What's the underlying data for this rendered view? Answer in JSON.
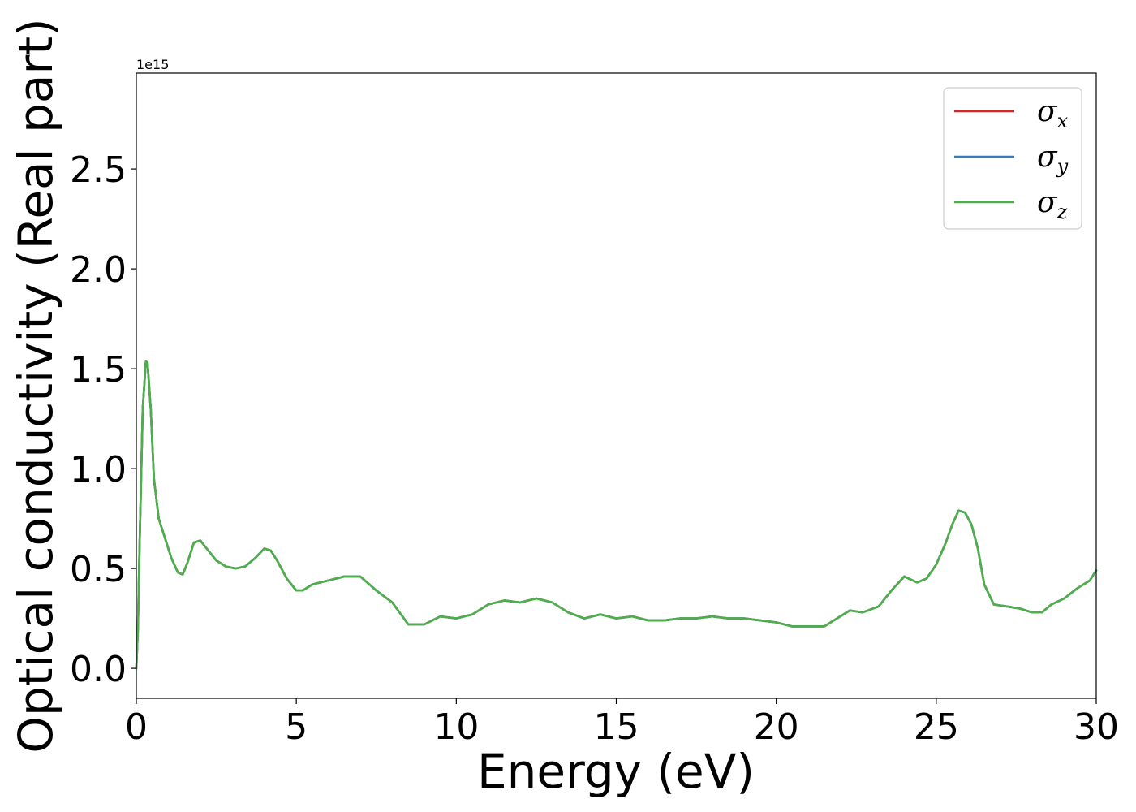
{
  "chart_data": {
    "type": "line",
    "title": "",
    "xlabel": "Energy (eV)",
    "ylabel": "Optical conductivity (Real part)",
    "y_offset_label": "1e15",
    "xlim": [
      0,
      30
    ],
    "ylim": [
      -0.15,
      2.98
    ],
    "x_ticks": [
      0,
      5,
      10,
      15,
      20,
      25,
      30
    ],
    "x_tick_labels": [
      "0",
      "5",
      "10",
      "15",
      "20",
      "25",
      "30"
    ],
    "y_ticks": [
      0.0,
      0.5,
      1.0,
      1.5,
      2.0,
      2.5
    ],
    "y_tick_labels": [
      "0.0",
      "0.5",
      "1.0",
      "1.5",
      "2.0",
      "2.5"
    ],
    "grid": false,
    "legend_position": "top-right",
    "x": [
      0,
      0.05,
      0.1,
      0.2,
      0.3,
      0.35,
      0.45,
      0.55,
      0.7,
      0.9,
      1.1,
      1.3,
      1.45,
      1.6,
      1.8,
      2.0,
      2.2,
      2.5,
      2.8,
      3.1,
      3.4,
      3.7,
      4.0,
      4.2,
      4.4,
      4.7,
      5.0,
      5.2,
      5.5,
      6.0,
      6.5,
      7.0,
      7.5,
      8.0,
      8.5,
      9.0,
      9.5,
      10.0,
      10.5,
      11.0,
      11.5,
      12.0,
      12.5,
      13.0,
      13.5,
      14.0,
      14.5,
      15.0,
      15.5,
      16.0,
      16.5,
      17.0,
      17.5,
      18.0,
      18.5,
      19.0,
      19.5,
      20.0,
      20.5,
      21.0,
      21.5,
      22.0,
      22.3,
      22.7,
      23.2,
      23.6,
      24.0,
      24.4,
      24.7,
      25.0,
      25.3,
      25.5,
      25.7,
      25.9,
      26.1,
      26.3,
      26.5,
      26.8,
      27.2,
      27.6,
      28.0,
      28.3,
      28.6,
      29.0,
      29.4,
      29.8,
      30.0
    ],
    "series": [
      {
        "name": "σx",
        "color": "#d62728",
        "values": [
          0.0,
          0.2,
          0.6,
          1.3,
          1.54,
          1.53,
          1.3,
          0.95,
          0.75,
          0.65,
          0.55,
          0.48,
          0.47,
          0.53,
          0.63,
          0.64,
          0.6,
          0.54,
          0.51,
          0.5,
          0.51,
          0.55,
          0.6,
          0.59,
          0.54,
          0.45,
          0.39,
          0.39,
          0.42,
          0.44,
          0.46,
          0.46,
          0.39,
          0.33,
          0.22,
          0.22,
          0.26,
          0.25,
          0.27,
          0.32,
          0.34,
          0.33,
          0.35,
          0.33,
          0.28,
          0.25,
          0.27,
          0.25,
          0.26,
          0.24,
          0.24,
          0.25,
          0.25,
          0.26,
          0.25,
          0.25,
          0.24,
          0.23,
          0.21,
          0.21,
          0.21,
          0.26,
          0.29,
          0.28,
          0.31,
          0.39,
          0.46,
          0.43,
          0.45,
          0.52,
          0.63,
          0.72,
          0.79,
          0.78,
          0.72,
          0.6,
          0.42,
          0.32,
          0.31,
          0.3,
          0.28,
          0.28,
          0.32,
          0.35,
          0.4,
          0.44,
          0.49
        ]
      },
      {
        "name": "σy",
        "color": "#377eb8",
        "values": [
          0.0,
          0.2,
          0.6,
          1.3,
          1.54,
          1.53,
          1.3,
          0.95,
          0.75,
          0.65,
          0.55,
          0.48,
          0.47,
          0.53,
          0.63,
          0.64,
          0.6,
          0.54,
          0.51,
          0.5,
          0.51,
          0.55,
          0.6,
          0.59,
          0.54,
          0.45,
          0.39,
          0.39,
          0.42,
          0.44,
          0.46,
          0.46,
          0.39,
          0.33,
          0.22,
          0.22,
          0.26,
          0.25,
          0.27,
          0.32,
          0.34,
          0.33,
          0.35,
          0.33,
          0.28,
          0.25,
          0.27,
          0.25,
          0.26,
          0.24,
          0.24,
          0.25,
          0.25,
          0.26,
          0.25,
          0.25,
          0.24,
          0.23,
          0.21,
          0.21,
          0.21,
          0.26,
          0.29,
          0.28,
          0.31,
          0.39,
          0.46,
          0.43,
          0.45,
          0.52,
          0.63,
          0.72,
          0.79,
          0.78,
          0.72,
          0.6,
          0.42,
          0.32,
          0.31,
          0.3,
          0.28,
          0.28,
          0.32,
          0.35,
          0.4,
          0.44,
          0.49
        ]
      },
      {
        "name": "σz",
        "color": "#4daf4a",
        "values": [
          0.0,
          0.2,
          0.6,
          1.3,
          1.54,
          1.53,
          1.3,
          0.95,
          0.75,
          0.65,
          0.55,
          0.48,
          0.47,
          0.53,
          0.63,
          0.64,
          0.6,
          0.54,
          0.51,
          0.5,
          0.51,
          0.55,
          0.6,
          0.59,
          0.54,
          0.45,
          0.39,
          0.39,
          0.42,
          0.44,
          0.46,
          0.46,
          0.39,
          0.33,
          0.22,
          0.22,
          0.26,
          0.25,
          0.27,
          0.32,
          0.34,
          0.33,
          0.35,
          0.33,
          0.28,
          0.25,
          0.27,
          0.25,
          0.26,
          0.24,
          0.24,
          0.25,
          0.25,
          0.26,
          0.25,
          0.25,
          0.24,
          0.23,
          0.21,
          0.21,
          0.21,
          0.26,
          0.29,
          0.28,
          0.31,
          0.39,
          0.46,
          0.43,
          0.45,
          0.52,
          0.63,
          0.72,
          0.79,
          0.78,
          0.72,
          0.6,
          0.42,
          0.32,
          0.31,
          0.3,
          0.28,
          0.28,
          0.32,
          0.35,
          0.4,
          0.44,
          0.49
        ]
      }
    ],
    "legend": [
      {
        "symbol": "σ",
        "subscript": "x",
        "color": "#d62728"
      },
      {
        "symbol": "σ",
        "subscript": "y",
        "color": "#377eb8"
      },
      {
        "symbol": "σ",
        "subscript": "z",
        "color": "#4daf4a"
      }
    ]
  }
}
